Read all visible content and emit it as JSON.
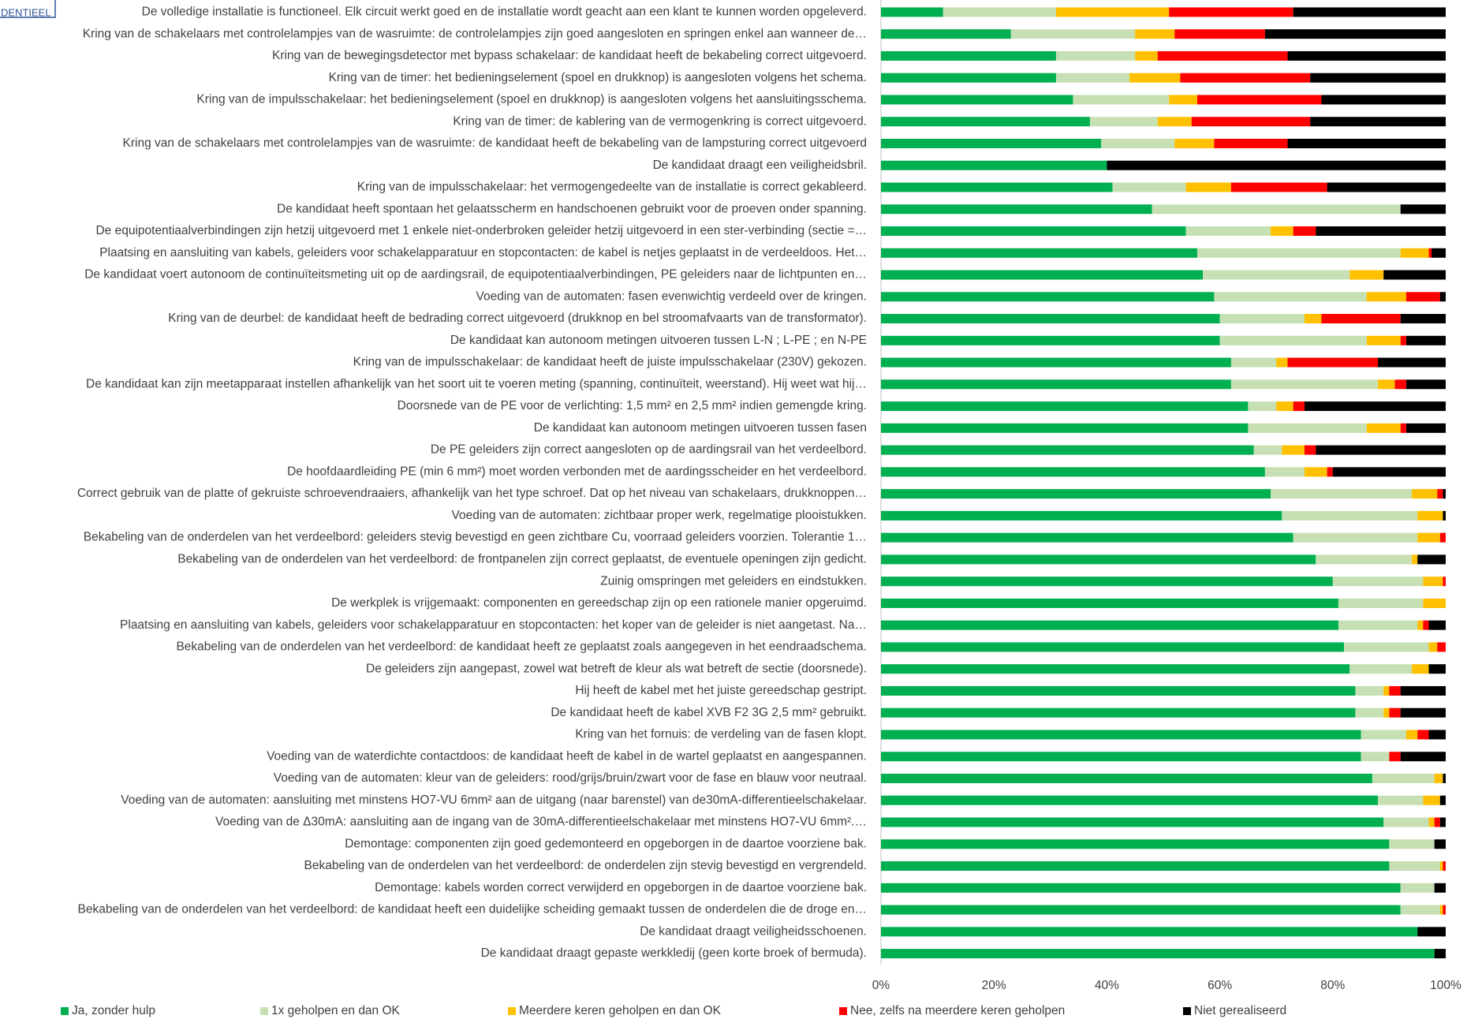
{
  "badge": "DENTIEEL",
  "chart_data": {
    "type": "stacked_barh",
    "categories": [
      "De volledige installatie is functioneel. Elk circuit werkt goed en de installatie wordt geacht aan een klant te kunnen worden opgeleverd.",
      "Kring van de schakelaars met controlelampjes van de wasruimte: de controlelampjes zijn goed aangesloten en springen enkel aan wanneer de…",
      "Kring van de bewegingsdetector met bypass schakelaar: de kandidaat heeft de bekabeling correct uitgevoerd.",
      "Kring van de timer: het bedieningselement (spoel en drukknop) is aangesloten volgens het schema.",
      "Kring van de impulsschakelaar: het bedieningselement (spoel en drukknop) is aangesloten volgens het aansluitingsschema.",
      "Kring van de timer: de kablering van de vermogenkring is correct uitgevoerd.",
      "Kring van de schakelaars met controlelampjes van de wasruimte: de kandidaat heeft de bekabeling van de lampsturing correct uitgevoerd",
      "De kandidaat draagt een veiligheidsbril.",
      "Kring van de impulsschakelaar: het vermogengedeelte van de installatie is correct gekableerd.",
      "De kandidaat heeft spontaan het gelaatsscherm en handschoenen gebruikt voor de proeven onder spanning.",
      "De equipotentiaalverbindingen zijn hetzij uitgevoerd met 1 enkele niet-onderbroken geleider hetzij uitgevoerd in een ster-verbinding (sectie =…",
      "Plaatsing en aansluiting van kabels, geleiders voor schakelapparatuur en stopcontacten: de kabel is netjes geplaatst in de verdeeldoos. Het…",
      "De kandidaat voert autonoom de continuïteitsmeting uit op de aardingsrail, de equipotentiaalverbindingen, PE geleiders naar de lichtpunten en…",
      "Voeding van de automaten: fasen evenwichtig verdeeld over de kringen.",
      "Kring van de deurbel: de kandidaat heeft de bedrading correct uitgevoerd (drukknop en bel stroomafvaarts van de transformator).",
      "De kandidaat kan autonoom metingen uitvoeren tussen L-N ; L-PE ; en N-PE",
      "Kring van de impulsschakelaar: de kandidaat heeft de juiste impulsschakelaar (230V) gekozen.",
      "De kandidaat kan zijn meetapparaat instellen afhankelijk van het soort uit te voeren meting (spanning, continuïteit, weerstand). Hij weet wat hij…",
      "Doorsnede van de PE voor de verlichting: 1,5 mm² en 2,5 mm² indien gemengde kring.",
      "De kandidaat kan autonoom metingen uitvoeren tussen fasen",
      "De PE geleiders zijn correct aangesloten op de aardingsrail van het verdeelbord.",
      "De hoofdaardleiding PE (min 6 mm²) moet worden verbonden met de aardingsscheider en het verdeelbord.",
      "Correct gebruik van de platte of gekruiste schroevendraaiers, afhankelijk van het type schroef. Dat op het niveau van schakelaars, drukknoppen…",
      "Voeding van de automaten: zichtbaar proper werk, regelmatige plooistukken.",
      "Bekabeling van de onderdelen van het verdeelbord: geleiders stevig bevestigd en geen zichtbare Cu, voorraad geleiders voorzien. Tolerantie 1…",
      "Bekabeling van de onderdelen van het verdeelbord: de frontpanelen zijn correct geplaatst, de eventuele openingen zijn gedicht.",
      "Zuinig omspringen met geleiders en eindstukken.",
      "De werkplek is vrijgemaakt: componenten en gereedschap zijn op een rationele manier opgeruimd.",
      "Plaatsing en aansluiting van kabels, geleiders voor schakelapparatuur en stopcontacten: het koper van de geleider is niet aangetast. Na…",
      "Bekabeling van de onderdelen van het verdeelbord: de kandidaat heeft ze geplaatst zoals aangegeven in het  eendraadschema.",
      "De geleiders zijn aangepast, zowel wat betreft de kleur als wat betreft de sectie (doorsnede).",
      "Hij heeft de kabel met het juiste gereedschap gestript.",
      "De kandidaat heeft de kabel XVB F2 3G 2,5 mm² gebruikt.",
      "Kring van het fornuis: de verdeling van de fasen klopt.",
      "Voeding van de waterdichte contactdoos: de kandidaat heeft de kabel in de wartel geplaatst en aangespannen.",
      "Voeding van de automaten: kleur van de geleiders: rood/grijs/bruin/zwart voor de fase en blauw voor neutraal.",
      "Voeding van de automaten: aansluiting met minstens HO7-VU 6mm² aan de uitgang (naar barenstel) van de30mA-differentieelschakelaar.",
      "Voeding van de Δ30mA: aansluiting aan de ingang van de 30mA-differentieelschakelaar met minstens HO7-VU 6mm².…",
      "Demontage: componenten zijn goed gedemonteerd en opgeborgen in de daartoe voorziene bak.",
      "Bekabeling van de onderdelen van het verdeelbord: de onderdelen zijn stevig bevestigd en vergrendeld.",
      "Demontage: kabels worden correct verwijderd en opgeborgen in de daartoe voorziene bak.",
      "Bekabeling van de onderdelen van het verdeelbord: de kandidaat heeft een duidelijke scheiding gemaakt tussen de onderdelen die de droge en…",
      "De kandidaat draagt veiligheidsschoenen.",
      "De kandidaat draagt gepaste werkkledij (geen korte broek of bermuda)."
    ],
    "series": [
      {
        "name": "Ja, zonder hulp",
        "color": "#00b050",
        "values": [
          11,
          23,
          31,
          31,
          34,
          37,
          39,
          40,
          41,
          48,
          54,
          56,
          57,
          59,
          60,
          60,
          62,
          62,
          65,
          65,
          66,
          68,
          69,
          71,
          73,
          77,
          80,
          81,
          81,
          82,
          83,
          84,
          84,
          85,
          85,
          87,
          88,
          89,
          90,
          90,
          92,
          92,
          95,
          98
        ]
      },
      {
        "name": "1x geholpen en dan OK",
        "color": "#c6e0b4",
        "values": [
          20,
          22,
          14,
          13,
          17,
          12,
          13,
          0,
          13,
          44,
          15,
          36,
          26,
          27,
          15,
          26,
          8,
          26,
          5,
          21,
          5,
          7,
          25,
          24,
          22,
          17,
          16,
          15,
          14,
          15,
          11,
          5,
          5,
          8,
          5,
          11,
          8,
          8,
          8,
          9,
          6,
          7,
          0,
          0
        ]
      },
      {
        "name": "Meerdere keren geholpen en dan OK",
        "color": "#ffc000",
        "values": [
          20,
          7,
          4,
          9,
          5,
          6,
          7,
          0,
          8,
          0,
          4,
          5,
          6,
          7,
          3,
          6,
          2,
          3,
          3,
          6,
          4,
          4,
          4.5,
          4.5,
          4,
          1,
          3.5,
          4,
          1,
          1.5,
          3,
          1,
          1,
          2,
          0,
          1.5,
          3,
          1,
          0,
          0.5,
          0,
          0.5,
          0,
          0
        ]
      },
      {
        "name": "Nee, zelfs na meerdere keren geholpen",
        "color": "#ff0000",
        "values": [
          22,
          16,
          23,
          23,
          22,
          21,
          13,
          0,
          17,
          0,
          4,
          0.5,
          0,
          6,
          14,
          1,
          16,
          2,
          2,
          1,
          2,
          1,
          1,
          0,
          1,
          0,
          0.5,
          0,
          1,
          1.5,
          0,
          2,
          2,
          2,
          2,
          0,
          0,
          1,
          0,
          0.5,
          0,
          0.5,
          0,
          0
        ]
      },
      {
        "name": "Niet gerealiseerd",
        "color": "#000000",
        "values": [
          27,
          32,
          28,
          24,
          22,
          24,
          28,
          60,
          21,
          8,
          23,
          2.5,
          11,
          1,
          8,
          7,
          12,
          7,
          25,
          7,
          23,
          20,
          0.5,
          0.5,
          0,
          5,
          0,
          0,
          3,
          0,
          3,
          8,
          8,
          3,
          8,
          0.5,
          1,
          1,
          2,
          0,
          2,
          0,
          5,
          2
        ]
      }
    ],
    "xlim": [
      0,
      100
    ],
    "xticks": [
      {
        "value": 0,
        "label": "0%"
      },
      {
        "value": 20,
        "label": "20%"
      },
      {
        "value": 40,
        "label": "40%"
      },
      {
        "value": 60,
        "label": "60%"
      },
      {
        "value": 80,
        "label": "80%"
      },
      {
        "value": 100,
        "label": "100%"
      }
    ],
    "legend": "bottom"
  }
}
